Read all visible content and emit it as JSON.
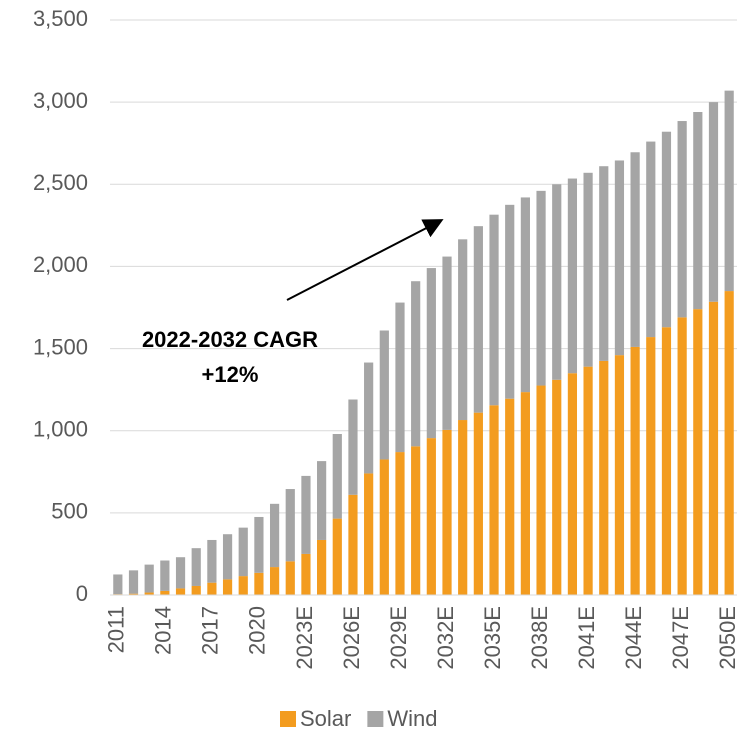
{
  "chart_data": {
    "type": "stacked_bar",
    "categories": [
      "2011",
      null,
      null,
      "2014",
      null,
      null,
      "2017",
      null,
      null,
      "2020",
      null,
      null,
      "2023E",
      null,
      null,
      "2026E",
      null,
      null,
      "2029E",
      null,
      null,
      "2032E",
      null,
      null,
      "2035E",
      null,
      null,
      "2038E",
      null,
      null,
      "2041E",
      null,
      null,
      "2044E",
      null,
      null,
      "2047E",
      null,
      null,
      "2050E"
    ],
    "series": [
      {
        "name": "Solar",
        "color": "#f39c1f",
        "values": [
          5,
          8,
          15,
          25,
          40,
          55,
          75,
          95,
          115,
          135,
          170,
          205,
          250,
          335,
          465,
          610,
          740,
          825,
          870,
          905,
          955,
          1005,
          1065,
          1110,
          1155,
          1195,
          1235,
          1275,
          1310,
          1350,
          1390,
          1425,
          1460,
          1510,
          1570,
          1630,
          1690,
          1740,
          1785,
          1850
        ]
      },
      {
        "name": "Wind",
        "color": "#a5a5a5",
        "values": [
          120,
          142,
          170,
          185,
          190,
          230,
          260,
          275,
          295,
          340,
          385,
          440,
          475,
          480,
          515,
          580,
          675,
          785,
          910,
          1005,
          1035,
          1055,
          1100,
          1135,
          1160,
          1180,
          1185,
          1185,
          1190,
          1185,
          1180,
          1185,
          1185,
          1185,
          1190,
          1190,
          1195,
          1200,
          1215,
          1220
        ]
      }
    ],
    "ylim": [
      0,
      3500
    ],
    "yticks": [
      0,
      500,
      {
        "value": 1000,
        "label": "1,000"
      },
      {
        "value": 1500,
        "label": "1,500"
      },
      {
        "value": 2000,
        "label": "2,000"
      },
      {
        "value": 2500,
        "label": "2,500"
      },
      {
        "value": 3000,
        "label": "3,000"
      },
      {
        "value": 3500,
        "label": "3,500"
      }
    ],
    "grid": true,
    "annotation": [
      "2022-2032 CAGR",
      "+12%"
    ]
  }
}
